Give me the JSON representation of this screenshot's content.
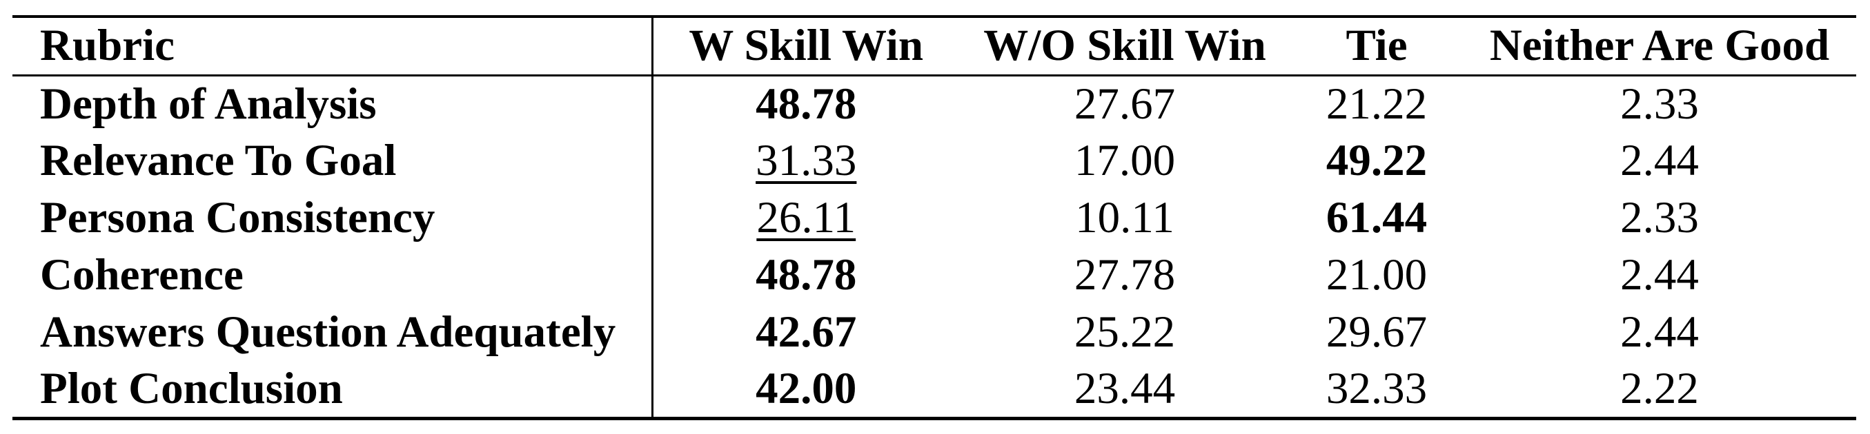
{
  "page": {
    "background_color": "#ffffff",
    "text_color": "#000000"
  },
  "table": {
    "header": {
      "rubric": "Rubric",
      "cols": [
        "W Skill Win",
        "W/O Skill Win",
        "Tie",
        "Neither Are Good"
      ]
    },
    "rows": [
      {
        "rubric": "Depth of Analysis",
        "values": [
          {
            "text": "48.78",
            "emphasis": "bold"
          },
          {
            "text": "27.67",
            "emphasis": "normal"
          },
          {
            "text": "21.22",
            "emphasis": "normal"
          },
          {
            "text": "2.33",
            "emphasis": "normal"
          }
        ]
      },
      {
        "rubric": "Relevance To Goal",
        "values": [
          {
            "text": "31.33",
            "emphasis": "underline"
          },
          {
            "text": "17.00",
            "emphasis": "normal"
          },
          {
            "text": "49.22",
            "emphasis": "bold"
          },
          {
            "text": "2.44",
            "emphasis": "normal"
          }
        ]
      },
      {
        "rubric": "Persona Consistency",
        "values": [
          {
            "text": "26.11",
            "emphasis": "underline"
          },
          {
            "text": "10.11",
            "emphasis": "normal"
          },
          {
            "text": "61.44",
            "emphasis": "bold"
          },
          {
            "text": "2.33",
            "emphasis": "normal"
          }
        ]
      },
      {
        "rubric": "Coherence",
        "values": [
          {
            "text": "48.78",
            "emphasis": "bold"
          },
          {
            "text": "27.78",
            "emphasis": "normal"
          },
          {
            "text": "21.00",
            "emphasis": "normal"
          },
          {
            "text": "2.44",
            "emphasis": "normal"
          }
        ]
      },
      {
        "rubric": "Answers Question Adequately",
        "values": [
          {
            "text": "42.67",
            "emphasis": "bold"
          },
          {
            "text": "25.22",
            "emphasis": "normal"
          },
          {
            "text": "29.67",
            "emphasis": "normal"
          },
          {
            "text": "2.44",
            "emphasis": "normal"
          }
        ]
      },
      {
        "rubric": "Plot Conclusion",
        "values": [
          {
            "text": "42.00",
            "emphasis": "bold"
          },
          {
            "text": "23.44",
            "emphasis": "normal"
          },
          {
            "text": "32.33",
            "emphasis": "normal"
          },
          {
            "text": "2.22",
            "emphasis": "normal"
          }
        ]
      }
    ]
  }
}
